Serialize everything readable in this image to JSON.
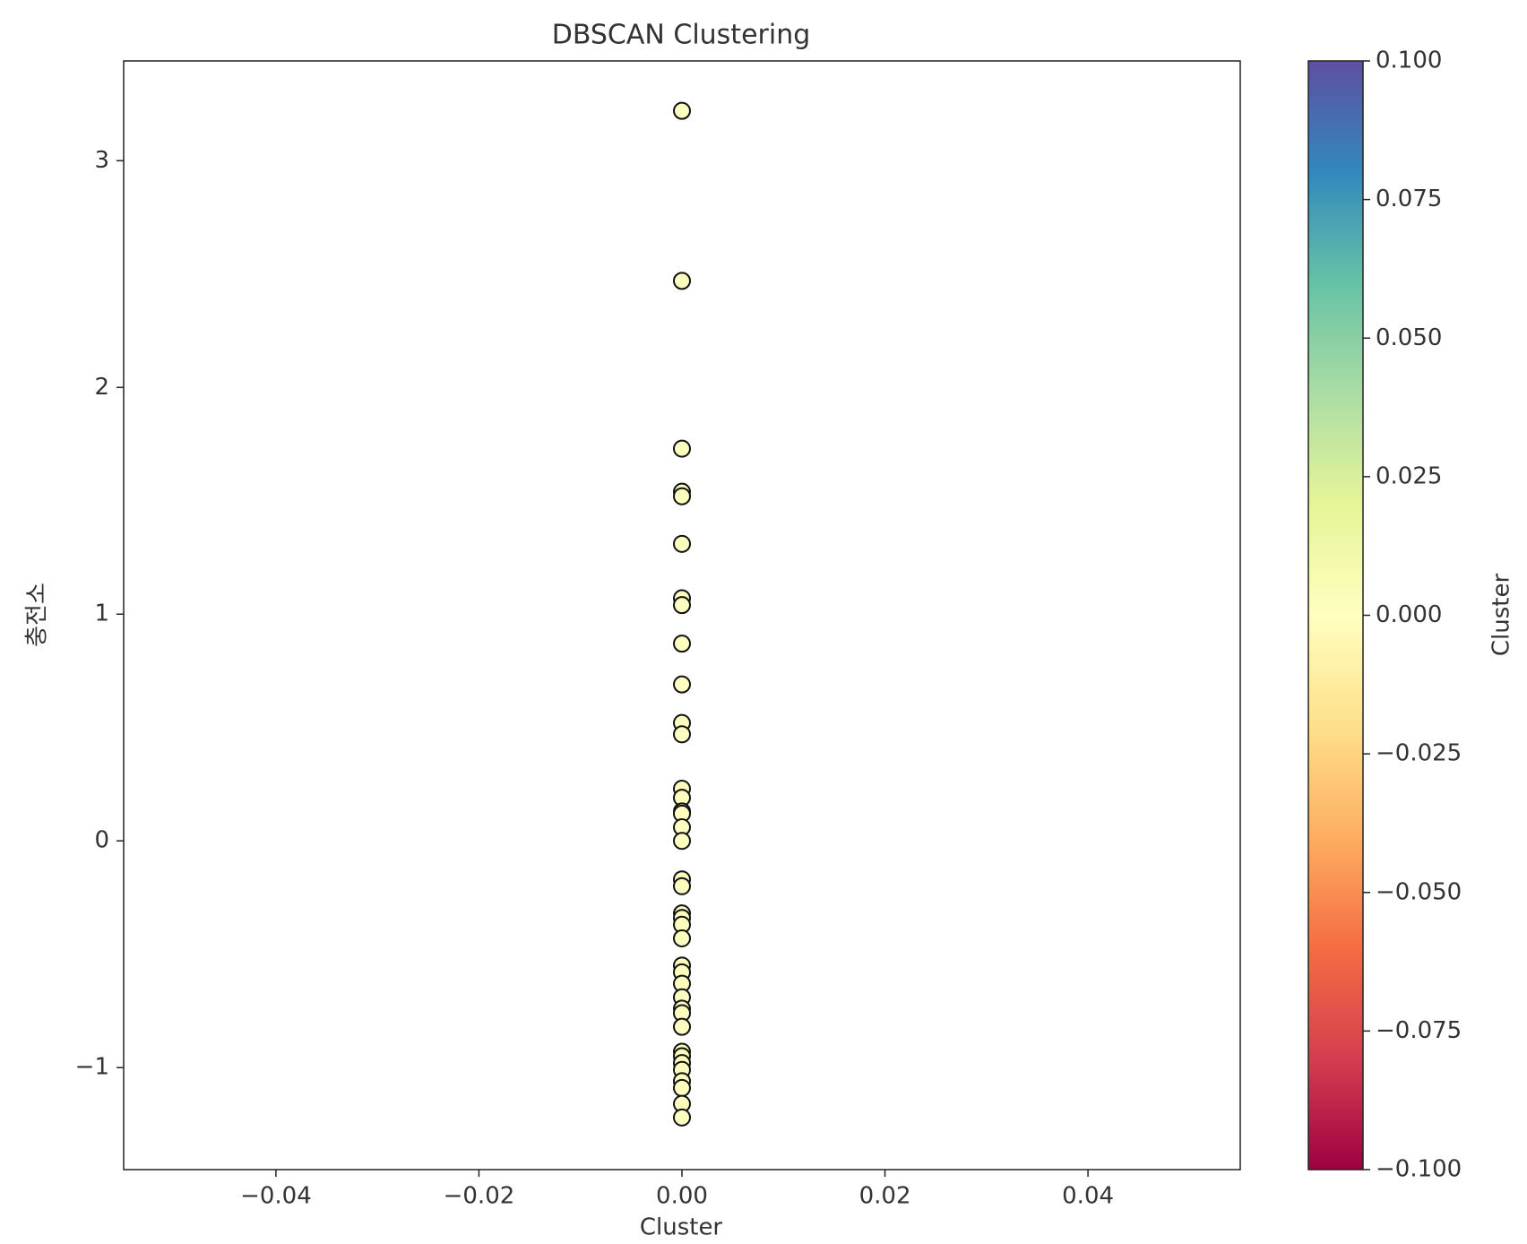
{
  "chart_data": {
    "type": "scatter",
    "title": "DBSCAN Clustering",
    "x_label": "Cluster",
    "y_label": "충전소",
    "series": [
      {
        "color": "#fefebe",
        "x": [
          0,
          0,
          0,
          0,
          0,
          0,
          0,
          0,
          0,
          0,
          0,
          0,
          0,
          0,
          0,
          0,
          0,
          0,
          0,
          0,
          0,
          0,
          0,
          0,
          0,
          0,
          0,
          0,
          0,
          0,
          0,
          0,
          0,
          0,
          0,
          0,
          0,
          0,
          0
        ],
        "values": [
          3.22,
          2.47,
          1.73,
          1.54,
          1.52,
          1.31,
          1.07,
          1.04,
          0.87,
          0.69,
          0.52,
          0.47,
          0.23,
          0.19,
          0.13,
          0.12,
          0.06,
          0.0,
          -0.17,
          -0.2,
          -0.32,
          -0.34,
          -0.37,
          -0.43,
          -0.55,
          -0.58,
          -0.63,
          -0.69,
          -0.74,
          -0.76,
          -0.82,
          -0.93,
          -0.95,
          -0.98,
          -1.01,
          -1.06,
          -1.09,
          -1.16,
          -1.22
        ]
      }
    ],
    "xlim": [
      -0.055,
      0.055
    ],
    "xticks": [
      {
        "value": -0.04,
        "label": "−0.04"
      },
      {
        "value": -0.02,
        "label": "−0.02"
      },
      {
        "value": 0,
        "label": "0.00"
      },
      {
        "value": 0.02,
        "label": "0.02"
      },
      {
        "value": 0.04,
        "label": "0.04"
      }
    ],
    "ylim": [
      -1.45,
      3.44
    ],
    "yticks": [
      {
        "value": -1,
        "label": "−1"
      },
      0,
      1,
      2,
      3
    ],
    "grid": false,
    "colorbar": {
      "label": "Cluster",
      "colormap": "Spectral",
      "lim": [
        -0.1,
        0.1
      ],
      "ticks": [
        {
          "value": -0.1,
          "label": "−0.100"
        },
        {
          "value": -0.075,
          "label": "−0.075"
        },
        {
          "value": -0.05,
          "label": "−0.050"
        },
        {
          "value": -0.025,
          "label": "−0.025"
        },
        {
          "value": 0,
          "label": "0.000"
        },
        {
          "value": 0.025,
          "label": "0.025"
        },
        {
          "value": 0.05,
          "label": "0.050"
        },
        {
          "value": 0.075,
          "label": "0.075"
        },
        {
          "value": 0.1,
          "label": "0.100"
        }
      ]
    }
  }
}
